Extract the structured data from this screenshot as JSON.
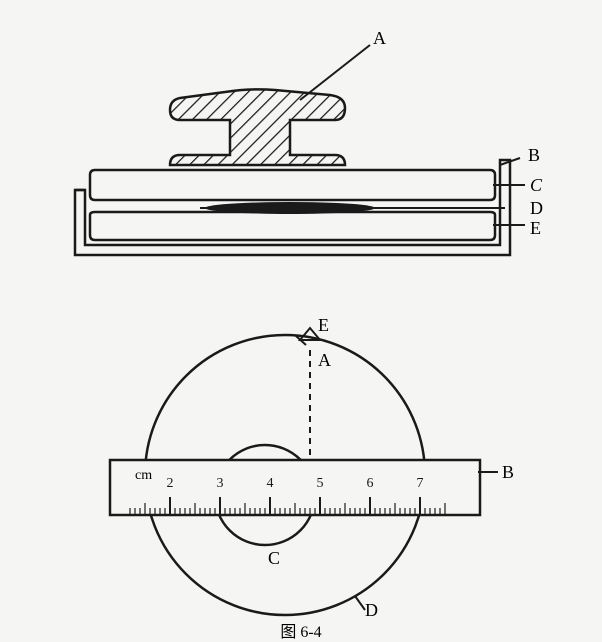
{
  "figure": {
    "caption": "图  6-4",
    "stroke_color": "#1a1a1a",
    "stroke_width": 2.5,
    "bg_color": "#f5f5f3"
  },
  "top_view": {
    "labels": {
      "A": "A",
      "B": "B",
      "C": "C",
      "D": "D",
      "E": "E"
    }
  },
  "bottom_view": {
    "labels": {
      "A": "A",
      "B": "B",
      "C": "C",
      "D": "D",
      "E": "E"
    },
    "ruler": {
      "unit": "cm",
      "ticks": [
        2,
        3,
        4,
        5,
        6,
        7
      ],
      "major_spacing": 50,
      "minor_per_major": 10
    }
  }
}
